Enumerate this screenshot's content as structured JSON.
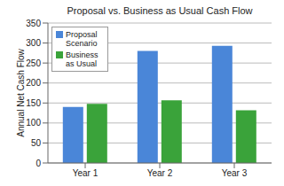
{
  "chart_data": {
    "type": "bar",
    "title": "Proposal vs. Business as Usual Cash Flow",
    "y_label": "Annual Net Cash Flow",
    "categories": [
      "Year 1",
      "Year 2",
      "Year 3"
    ],
    "series": [
      {
        "name": "Proposal Scenario",
        "color": "#4a86d8",
        "values": [
          140,
          280,
          293
        ]
      },
      {
        "name": "Business as Usual",
        "color": "#3aa33a",
        "values": [
          148,
          157,
          132
        ]
      }
    ],
    "ylim": [
      0,
      350
    ],
    "yticks": [
      0,
      50,
      100,
      150,
      200,
      250,
      300,
      350
    ],
    "grid": true,
    "legend": "upper left"
  }
}
